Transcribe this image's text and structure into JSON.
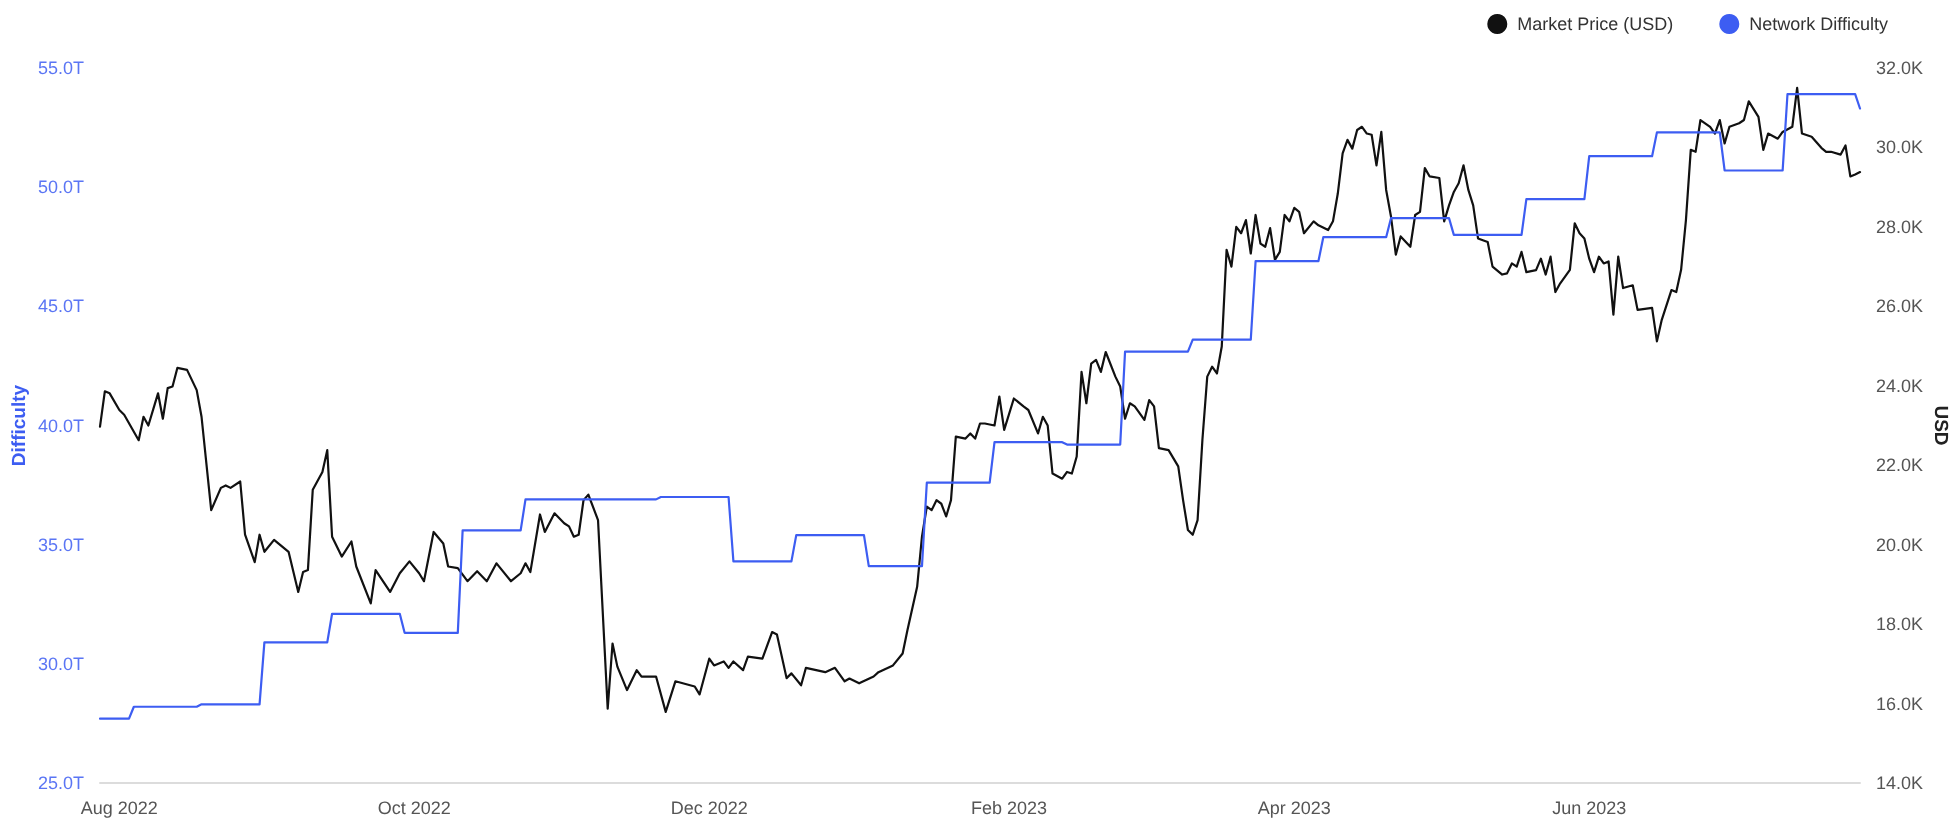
{
  "chart_data": {
    "type": "line",
    "ylabel": "Difficulty",
    "y2label": "USD",
    "legend": "top right",
    "line_style": "solid",
    "xlim": [
      "2022-07-28",
      "2023-07-27"
    ],
    "xticks": [
      {
        "value": "2022-08-01",
        "label": "Aug 2022"
      },
      {
        "value": "2022-10-01",
        "label": "Oct 2022"
      },
      {
        "value": "2022-12-01",
        "label": "Dec 2022"
      },
      {
        "value": "2023-02-01",
        "label": "Feb 2023"
      },
      {
        "value": "2023-04-01",
        "label": "Apr 2023"
      },
      {
        "value": "2023-06-01",
        "label": "Jun 2023"
      }
    ],
    "ylim": [
      25000000000000.0,
      55000000000000.0
    ],
    "yticks": [
      {
        "value": 25000000000000.0,
        "label": "25.0T"
      },
      {
        "value": 30000000000000.0,
        "label": "30.0T"
      },
      {
        "value": 35000000000000.0,
        "label": "35.0T"
      },
      {
        "value": 40000000000000.0,
        "label": "40.0T"
      },
      {
        "value": 45000000000000.0,
        "label": "45.0T"
      },
      {
        "value": 50000000000000.0,
        "label": "50.0T"
      },
      {
        "value": 55000000000000.0,
        "label": "55.0T"
      }
    ],
    "y2lim": [
      14000.0,
      32000.0
    ],
    "y2ticks": [
      {
        "value": 14000.0,
        "label": "14.0K"
      },
      {
        "value": 16000.0,
        "label": "16.0K"
      },
      {
        "value": 18000.0,
        "label": "18.0K"
      },
      {
        "value": 20000.0,
        "label": "20.0K"
      },
      {
        "value": 22000.0,
        "label": "22.0K"
      },
      {
        "value": 24000.0,
        "label": "24.0K"
      },
      {
        "value": 26000.0,
        "label": "26.0K"
      },
      {
        "value": 28000.0,
        "label": "28.0K"
      },
      {
        "value": 30000.0,
        "label": "30.0K"
      },
      {
        "value": 32000.0,
        "label": "32.0K"
      }
    ],
    "series": [
      {
        "name": "Market Price (USD)",
        "color": "#111111",
        "axis": "y2",
        "x": [
          "2022-07-28",
          "2022-07-29",
          "2022-07-30",
          "2022-08-01",
          "2022-08-02",
          "2022-08-05",
          "2022-08-06",
          "2022-08-07",
          "2022-08-09",
          "2022-08-10",
          "2022-08-11",
          "2022-08-12",
          "2022-08-13",
          "2022-08-15",
          "2022-08-17",
          "2022-08-18",
          "2022-08-20",
          "2022-08-22",
          "2022-08-23",
          "2022-08-24",
          "2022-08-26",
          "2022-08-27",
          "2022-08-29",
          "2022-08-30",
          "2022-08-31",
          "2022-09-02",
          "2022-09-05",
          "2022-09-07",
          "2022-09-08",
          "2022-09-09",
          "2022-09-10",
          "2022-09-12",
          "2022-09-13",
          "2022-09-14",
          "2022-09-16",
          "2022-09-18",
          "2022-09-19",
          "2022-09-22",
          "2022-09-23",
          "2022-09-26",
          "2022-09-28",
          "2022-09-30",
          "2022-10-02",
          "2022-10-03",
          "2022-10-05",
          "2022-10-07",
          "2022-10-08",
          "2022-10-10",
          "2022-10-12",
          "2022-10-14",
          "2022-10-16",
          "2022-10-18",
          "2022-10-21",
          "2022-10-23",
          "2022-10-24",
          "2022-10-25",
          "2022-10-27",
          "2022-10-28",
          "2022-10-30",
          "2022-11-01",
          "2022-11-02",
          "2022-11-03",
          "2022-11-04",
          "2022-11-05",
          "2022-11-06",
          "2022-11-08",
          "2022-11-10",
          "2022-11-11",
          "2022-11-12",
          "2022-11-14",
          "2022-11-16",
          "2022-11-17",
          "2022-11-20",
          "2022-11-22",
          "2022-11-24",
          "2022-11-28",
          "2022-11-29",
          "2022-12-01",
          "2022-12-02",
          "2022-12-04",
          "2022-12-05",
          "2022-12-06",
          "2022-12-08",
          "2022-12-09",
          "2022-12-12",
          "2022-12-14",
          "2022-12-15",
          "2022-12-17",
          "2022-12-18",
          "2022-12-20",
          "2022-12-21",
          "2022-12-25",
          "2022-12-27",
          "2022-12-29",
          "2022-12-30",
          "2023-01-01",
          "2023-01-04",
          "2023-01-05",
          "2023-01-08",
          "2023-01-10",
          "2023-01-11",
          "2023-01-13",
          "2023-01-14",
          "2023-01-15",
          "2023-01-16",
          "2023-01-17",
          "2023-01-18",
          "2023-01-19",
          "2023-01-20",
          "2023-01-21",
          "2023-01-23",
          "2023-01-24",
          "2023-01-25",
          "2023-01-26",
          "2023-01-27",
          "2023-01-29",
          "2023-01-30",
          "2023-01-31",
          "2023-02-02",
          "2023-02-04",
          "2023-02-05",
          "2023-02-07",
          "2023-02-08",
          "2023-02-09",
          "2023-02-10",
          "2023-02-12",
          "2023-02-13",
          "2023-02-14",
          "2023-02-15",
          "2023-02-16",
          "2023-02-17",
          "2023-02-18",
          "2023-02-19",
          "2023-02-20",
          "2023-02-21",
          "2023-02-23",
          "2023-02-24",
          "2023-02-25",
          "2023-02-26",
          "2023-02-27",
          "2023-03-01",
          "2023-03-02",
          "2023-03-03",
          "2023-03-04",
          "2023-03-06",
          "2023-03-08",
          "2023-03-09",
          "2023-03-10",
          "2023-03-11",
          "2023-03-12",
          "2023-03-13",
          "2023-03-14",
          "2023-03-15",
          "2023-03-16",
          "2023-03-17",
          "2023-03-18",
          "2023-03-19",
          "2023-03-20",
          "2023-03-21",
          "2023-03-22",
          "2023-03-23",
          "2023-03-24",
          "2023-03-25",
          "2023-03-26",
          "2023-03-27",
          "2023-03-28",
          "2023-03-29",
          "2023-03-30",
          "2023-03-31",
          "2023-04-01",
          "2023-04-02",
          "2023-04-03",
          "2023-04-05",
          "2023-04-06",
          "2023-04-08",
          "2023-04-09",
          "2023-04-10",
          "2023-04-11",
          "2023-04-12",
          "2023-04-13",
          "2023-04-14",
          "2023-04-15",
          "2023-04-16",
          "2023-04-17",
          "2023-04-18",
          "2023-04-19",
          "2023-04-20",
          "2023-04-21",
          "2023-04-22",
          "2023-04-23",
          "2023-04-25",
          "2023-04-26",
          "2023-04-27",
          "2023-04-28",
          "2023-04-29",
          "2023-05-01",
          "2023-05-02",
          "2023-05-03",
          "2023-05-04",
          "2023-05-05",
          "2023-05-06",
          "2023-05-07",
          "2023-05-08",
          "2023-05-09",
          "2023-05-11",
          "2023-05-12",
          "2023-05-14",
          "2023-05-15",
          "2023-05-16",
          "2023-05-17",
          "2023-05-18",
          "2023-05-19",
          "2023-05-21",
          "2023-05-22",
          "2023-05-23",
          "2023-05-24",
          "2023-05-25",
          "2023-05-26",
          "2023-05-28",
          "2023-05-29",
          "2023-05-30",
          "2023-05-31",
          "2023-06-01",
          "2023-06-02",
          "2023-06-03",
          "2023-06-04",
          "2023-06-05",
          "2023-06-06",
          "2023-06-07",
          "2023-06-08",
          "2023-06-10",
          "2023-06-11",
          "2023-06-14",
          "2023-06-15",
          "2023-06-16",
          "2023-06-18",
          "2023-06-19",
          "2023-06-20",
          "2023-06-21",
          "2023-06-22",
          "2023-06-23",
          "2023-06-24",
          "2023-06-26",
          "2023-06-27",
          "2023-06-28",
          "2023-06-29",
          "2023-06-30",
          "2023-07-02",
          "2023-07-03",
          "2023-07-04",
          "2023-07-06",
          "2023-07-07",
          "2023-07-08",
          "2023-07-10",
          "2023-07-11",
          "2023-07-13",
          "2023-07-14",
          "2023-07-15",
          "2023-07-17",
          "2023-07-19",
          "2023-07-20",
          "2023-07-21",
          "2023-07-23",
          "2023-07-24",
          "2023-07-25",
          "2023-07-26",
          "2023-07-27"
        ],
        "values": [
          22970.0,
          23860.0,
          23810.0,
          23390.0,
          23270.0,
          22630.0,
          23220.0,
          23000.0,
          23810.0,
          23170.0,
          23940.0,
          23980.0,
          24450.0,
          24400.0,
          23890.0,
          23220.0,
          20870.0,
          21430.0,
          21490.0,
          21430.0,
          21590.0,
          20250.0,
          19560.0,
          20250.0,
          19820.0,
          20120.0,
          19820.0,
          18810.0,
          19310.0,
          19360.0,
          21380.0,
          21830.0,
          22380.0,
          20200.0,
          19700.0,
          20080.0,
          19450.0,
          18520.0,
          19360.0,
          18810.0,
          19280.0,
          19580.0,
          19280.0,
          19080.0,
          20320.0,
          20030.0,
          19450.0,
          19410.0,
          19080.0,
          19330.0,
          19080.0,
          19530.0,
          19080.0,
          19280.0,
          19530.0,
          19310.0,
          20760.0,
          20320.0,
          20790.0,
          20540.0,
          20460.0,
          20200.0,
          20250.0,
          21120.0,
          21260.0,
          20620.0,
          15870.0,
          17510.0,
          16930.0,
          16340.0,
          16840.0,
          16680.0,
          16680.0,
          15790.0,
          16560.0,
          16430.0,
          16230.0,
          17130.0,
          16960.0,
          17060.0,
          16900.0,
          17060.0,
          16840.0,
          17180.0,
          17130.0,
          17800.0,
          17740.0,
          16640.0,
          16760.0,
          16460.0,
          16900.0,
          16790.0,
          16900.0,
          16560.0,
          16630.0,
          16510.0,
          16680.0,
          16790.0,
          16960.0,
          17260.0,
          17850.0,
          18940.0,
          20200.0,
          20960.0,
          20870.0,
          21120.0,
          21030.0,
          20710.0,
          21120.0,
          22720.0,
          22670.0,
          22800.0,
          22670.0,
          23050.0,
          23050.0,
          23000.0,
          23730.0,
          22890.0,
          23680.0,
          23480.0,
          23390.0,
          22800.0,
          23220.0,
          23000.0,
          21790.0,
          21660.0,
          21830.0,
          21790.0,
          22220.0,
          24350.0,
          23560.0,
          24560.0,
          24650.0,
          24350.0,
          24850.0,
          24230.0,
          23980.0,
          23170.0,
          23560.0,
          23480.0,
          23140.0,
          23640.0,
          23480.0,
          22430.0,
          22380.0,
          21970.0,
          21120.0,
          20370.0,
          20250.0,
          20620.0,
          22640.0,
          24230.0,
          24480.0,
          24310.0,
          24990.0,
          27420.0,
          27000.0,
          28000.0,
          27840.0,
          28170.0,
          27330.0,
          28300.0,
          27580.0,
          27500.0,
          27970.0,
          27170.0,
          27370.0,
          28300.0,
          28140.0,
          28480.0,
          28380.0,
          27840.0,
          28140.0,
          28040.0,
          27920.0,
          28140.0,
          28840.0,
          29850.0,
          30190.0,
          29970.0,
          30440.0,
          30520.0,
          30350.0,
          30320.0,
          29550.0,
          30390.0,
          28930.0,
          28260.0,
          27300.0,
          27760.0,
          27500.0,
          28300.0,
          28380.0,
          29480.0,
          29270.0,
          29230.0,
          28140.0,
          28540.0,
          28880.0,
          29100.0,
          29550.0,
          28930.0,
          28540.0,
          27710.0,
          27620.0,
          27000.0,
          26800.0,
          26830.0,
          27080.0,
          27000.0,
          27370.0,
          26860.0,
          26910.0,
          27200.0,
          26800.0,
          27250.0,
          26360.0,
          26580.0,
          26920.0,
          28090.0,
          27840.0,
          27710.0,
          27200.0,
          26860.0,
          27250.0,
          27080.0,
          27130.0,
          25790.0,
          27250.0,
          26460.0,
          26530.0,
          25910.0,
          25960.0,
          25120.0,
          25660.0,
          26410.0,
          26360.0,
          26920.0,
          28170.0,
          29940.0,
          29890.0,
          30690.0,
          30520.0,
          30350.0,
          30690.0,
          30100.0,
          30520.0,
          30610.0,
          30690.0,
          31160.0,
          30770.0,
          29940.0,
          30350.0,
          30220.0,
          30390.0,
          30520.0,
          31500.0,
          30350.0,
          30270.0,
          29990.0,
          29890.0,
          29890.0,
          29820.0,
          30050.0,
          29270.0,
          29320.0,
          29380.0
        ]
      },
      {
        "name": "Network Difficulty",
        "color": "#3d5df2",
        "x": [
          "2022-07-28",
          "2022-08-03",
          "2022-08-04",
          "2022-08-17",
          "2022-08-18",
          "2022-08-30",
          "2022-08-31",
          "2022-09-13",
          "2022-09-14",
          "2022-09-28",
          "2022-09-29",
          "2022-10-10",
          "2022-10-11",
          "2022-10-23",
          "2022-10-24",
          "2022-11-20",
          "2022-11-21",
          "2022-12-05",
          "2022-12-06",
          "2022-12-18",
          "2022-12-19",
          "2023-01-02",
          "2023-01-03",
          "2023-01-14",
          "2023-01-15",
          "2023-01-28",
          "2023-01-29",
          "2023-02-12",
          "2023-02-13",
          "2023-02-24",
          "2023-02-25",
          "2023-03-10",
          "2023-03-11",
          "2023-03-23",
          "2023-03-24",
          "2023-04-06",
          "2023-04-07",
          "2023-04-20",
          "2023-04-21",
          "2023-05-03",
          "2023-05-04",
          "2023-05-18",
          "2023-05-19",
          "2023-05-31",
          "2023-06-01",
          "2023-06-14",
          "2023-06-15",
          "2023-06-28",
          "2023-06-29",
          "2023-07-11",
          "2023-07-12",
          "2023-07-26",
          "2023-07-27"
        ],
        "values": [
          27700000000000.0,
          27700000000000.0,
          28200000000000.0,
          28200000000000.0,
          28300000000000.0,
          28300000000000.0,
          30900000000000.0,
          30900000000000.0,
          32100000000000.0,
          32100000000000.0,
          31300000000000.0,
          31300000000000.0,
          35600000000000.0,
          35600000000000.0,
          36900000000000.0,
          36900000000000.0,
          37000000000000.0,
          37000000000000.0,
          34300000000000.0,
          34300000000000.0,
          35400000000000.0,
          35400000000000.0,
          34100000000000.0,
          34100000000000.0,
          37600000000000.0,
          37600000000000.0,
          39300000000000.0,
          39300000000000.0,
          39200000000000.0,
          39200000000000.0,
          43100000000000.0,
          43100000000000.0,
          43600000000000.0,
          43600000000000.0,
          46900000000000.0,
          46900000000000.0,
          47900000000000.0,
          47900000000000.0,
          48700000000000.0,
          48700000000000.0,
          48000000000000.0,
          48000000000000.0,
          49500000000000.0,
          49500000000000.0,
          51300000000000.0,
          51300000000000.0,
          52300000000000.0,
          52300000000000.0,
          50700000000000.0,
          50700000000000.0,
          53900000000000.0,
          53900000000000.0,
          53300000000000.0
        ]
      }
    ]
  }
}
